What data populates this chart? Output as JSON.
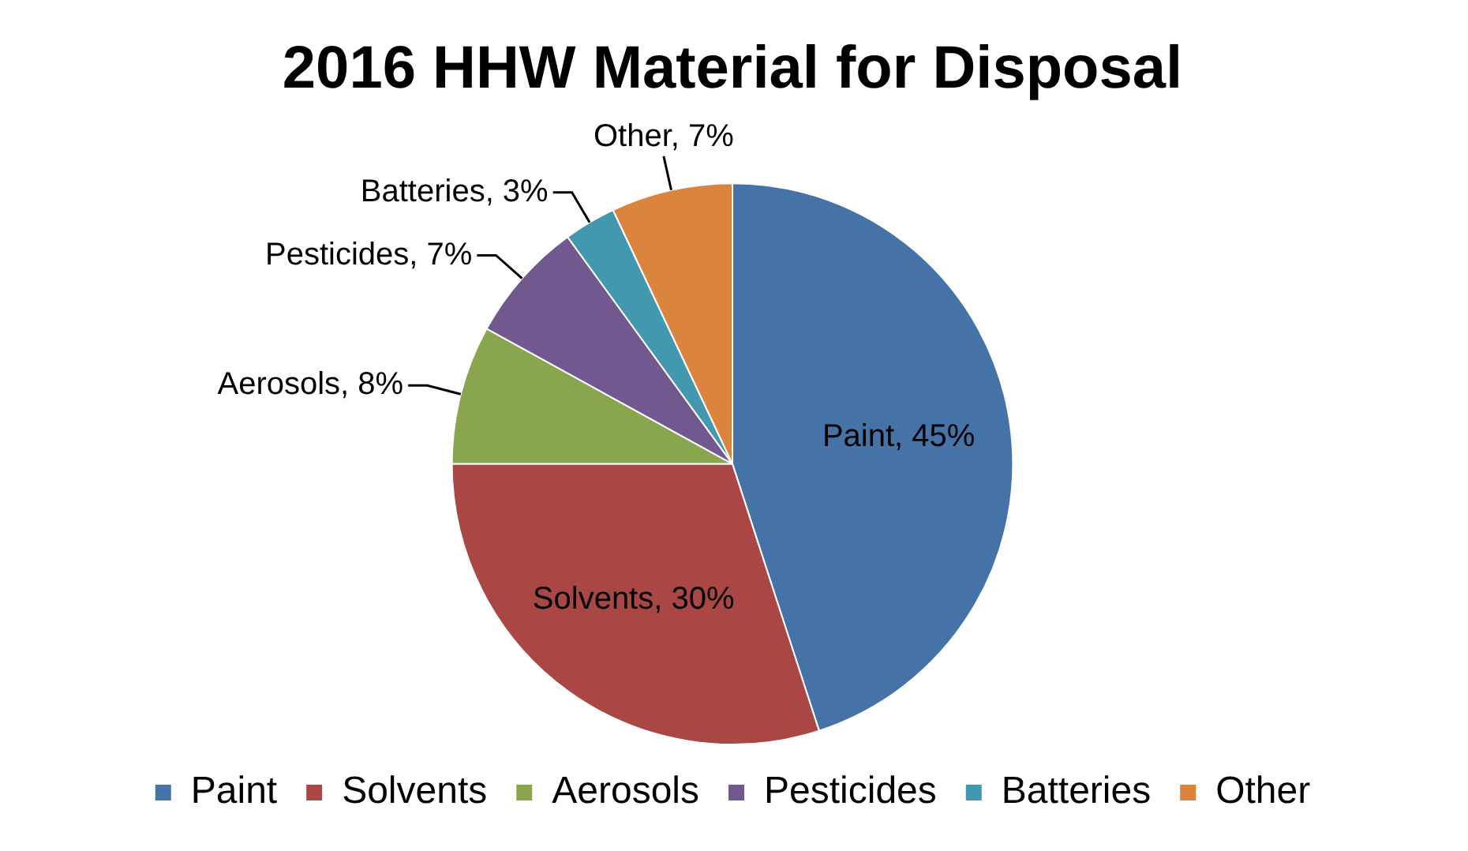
{
  "chart_data": {
    "type": "pie",
    "title": "2016 HHW Material for Disposal",
    "categories": [
      "Paint",
      "Solvents",
      "Aerosols",
      "Pesticides",
      "Batteries",
      "Other"
    ],
    "values": [
      45,
      30,
      8,
      7,
      3,
      7
    ],
    "colors": [
      "#4572a7",
      "#aa4643",
      "#89a54e",
      "#71588f",
      "#4198af",
      "#db843d"
    ],
    "value_labels": [
      "Paint, 45%",
      "Solvents, 30%",
      "Aerosols, 8%",
      "Pesticides, 7%",
      "Batteries, 3%",
      "Other, 7%"
    ],
    "legend": "bottom"
  }
}
